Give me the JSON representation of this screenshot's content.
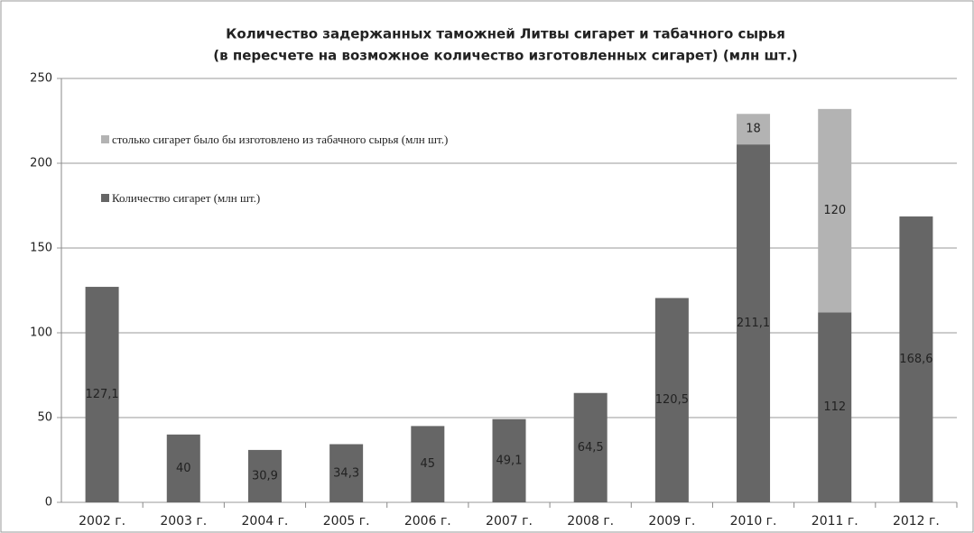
{
  "chart_data": {
    "type": "bar",
    "stacked": true,
    "title": "Количество задержанных таможней Литвы сигарет и табачного сырья",
    "subtitle": "(в пересчете на возможное количество изготовленных сигарет) (млн шт.)",
    "categories": [
      "2002 г.",
      "2003 г.",
      "2004 г.",
      "2005 г.",
      "2006 г.",
      "2007 г.",
      "2008 г.",
      "2009 г.",
      "2010 г.",
      "2011 г.",
      "2012 г."
    ],
    "series": [
      {
        "name": "Количество сигарет (млн шт.)",
        "color": "#666666",
        "values": [
          127.1,
          40,
          30.9,
          34.3,
          45,
          49.1,
          64.5,
          120.5,
          211.1,
          112,
          168.6
        ],
        "value_labels": [
          "127,1",
          "40",
          "30,9",
          "34,3",
          "45",
          "49,1",
          "64,5",
          "120,5",
          "211,1",
          "112",
          "168,6"
        ]
      },
      {
        "name": "столько сигарет было бы изготовлено из табачного сырья (млн шт.)",
        "color": "#b3b3b3",
        "values": [
          null,
          null,
          null,
          null,
          null,
          null,
          null,
          null,
          18,
          120,
          null
        ]
      }
    ],
    "ylim": [
      0,
      250
    ],
    "yticks": [
      0,
      50,
      100,
      150,
      200,
      250
    ],
    "grid": true,
    "legend": "upper left"
  }
}
